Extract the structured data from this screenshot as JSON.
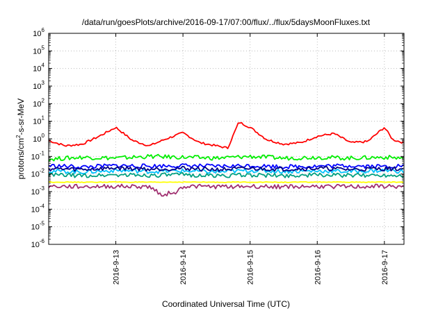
{
  "chart_data": {
    "type": "line",
    "title": "/data/run/goesPlots/archive/2016-09-17/07:00/flux/../flux/5daysMoonFluxes.txt",
    "xlabel": "Coordinated Universal Time (UTC)",
    "ylabel": {
      "pre": "protons/cm",
      "sup": "2",
      "post": "-s-sr-MeV"
    },
    "x_range_days": [
      "2016-09-12 00:00",
      "2016-09-17 07:00"
    ],
    "x_ticks": [
      "2016-9-13",
      "2016-9-14",
      "2016-9-15",
      "2016-9-16",
      "2016-9-17"
    ],
    "y_scale": "log",
    "y_range": [
      1e-06,
      1000000.0
    ],
    "y_ticks": [
      {
        "base": "10",
        "exp": "-6"
      },
      {
        "base": "10",
        "exp": "-5"
      },
      {
        "base": "10",
        "exp": "-4"
      },
      {
        "base": "10",
        "exp": "-3"
      },
      {
        "base": "10",
        "exp": "-2"
      },
      {
        "base": "10",
        "exp": "-1"
      },
      {
        "base": "10",
        "exp": "0"
      },
      {
        "base": "10",
        "exp": "1"
      },
      {
        "base": "10",
        "exp": "2"
      },
      {
        "base": "10",
        "exp": "3"
      },
      {
        "base": "10",
        "exp": "4"
      },
      {
        "base": "10",
        "exp": "5"
      },
      {
        "base": "10",
        "exp": "6"
      }
    ],
    "grid": true,
    "series": [
      {
        "color": "#ff0000",
        "x": [
          "2016-09-12 00:00",
          "2016-09-12 06:00",
          "2016-09-12 12:00",
          "2016-09-12 18:00",
          "2016-09-13 00:00",
          "2016-09-13 06:00",
          "2016-09-13 12:00",
          "2016-09-13 18:00",
          "2016-09-14 00:00",
          "2016-09-14 06:00",
          "2016-09-14 12:00",
          "2016-09-14 16:00",
          "2016-09-14 20:00",
          "2016-09-15 00:00",
          "2016-09-15 06:00",
          "2016-09-15 12:00",
          "2016-09-15 18:00",
          "2016-09-16 00:00",
          "2016-09-16 06:00",
          "2016-09-16 12:00",
          "2016-09-16 18:00",
          "2016-09-17 00:00",
          "2016-09-17 03:00",
          "2016-09-17 07:00"
        ],
        "y": [
          0.8,
          0.4,
          0.5,
          1.4,
          4.5,
          0.8,
          0.4,
          1.0,
          2.2,
          0.6,
          0.4,
          0.3,
          9.0,
          4.5,
          0.9,
          0.5,
          0.6,
          1.4,
          2.0,
          0.6,
          0.7,
          4.5,
          0.9,
          0.6
        ]
      },
      {
        "color": "#00ee00",
        "x": [
          "2016-09-12 00:00",
          "2016-09-12 12:00",
          "2016-09-13 00:00",
          "2016-09-13 12:00",
          "2016-09-14 00:00",
          "2016-09-14 12:00",
          "2016-09-15 00:00",
          "2016-09-15 12:00",
          "2016-09-16 00:00",
          "2016-09-16 12:00",
          "2016-09-17 00:00",
          "2016-09-17 07:00"
        ],
        "y": [
          0.07,
          0.09,
          0.08,
          0.1,
          0.09,
          0.08,
          0.1,
          0.08,
          0.09,
          0.08,
          0.09,
          0.08
        ]
      },
      {
        "color": "#0000ff",
        "x": [
          "2016-09-12 00:00",
          "2016-09-12 12:00",
          "2016-09-13 00:00",
          "2016-09-13 12:00",
          "2016-09-14 00:00",
          "2016-09-14 12:00",
          "2016-09-15 00:00",
          "2016-09-15 12:00",
          "2016-09-16 00:00",
          "2016-09-16 12:00",
          "2016-09-17 00:00",
          "2016-09-17 07:00"
        ],
        "y": [
          0.03,
          0.025,
          0.03,
          0.028,
          0.03,
          0.027,
          0.03,
          0.026,
          0.028,
          0.03,
          0.027,
          0.03
        ]
      },
      {
        "color": "#00c0ff",
        "x": [
          "2016-09-12 00:00",
          "2016-09-12 12:00",
          "2016-09-13 00:00",
          "2016-09-13 12:00",
          "2016-09-14 00:00",
          "2016-09-14 12:00",
          "2016-09-15 00:00",
          "2016-09-15 12:00",
          "2016-09-16 00:00",
          "2016-09-16 12:00",
          "2016-09-17 00:00",
          "2016-09-17 07:00"
        ],
        "y": [
          0.015,
          0.013,
          0.016,
          0.014,
          0.015,
          0.013,
          0.016,
          0.014,
          0.015,
          0.014,
          0.016,
          0.014
        ]
      },
      {
        "color": "#000080",
        "x": [
          "2016-09-12 00:00",
          "2016-09-12 12:00",
          "2016-09-13 00:00",
          "2016-09-13 12:00",
          "2016-09-14 00:00",
          "2016-09-14 12:00",
          "2016-09-15 00:00",
          "2016-09-15 12:00",
          "2016-09-16 00:00",
          "2016-09-16 12:00",
          "2016-09-17 00:00",
          "2016-09-17 07:00"
        ],
        "y": [
          0.02,
          0.018,
          0.022,
          0.019,
          0.021,
          0.018,
          0.02,
          0.019,
          0.021,
          0.018,
          0.02,
          0.019
        ]
      },
      {
        "color": "#00a080",
        "x": [
          "2016-09-12 00:00",
          "2016-09-12 12:00",
          "2016-09-13 00:00",
          "2016-09-13 12:00",
          "2016-09-14 00:00",
          "2016-09-14 12:00",
          "2016-09-15 00:00",
          "2016-09-15 12:00",
          "2016-09-16 00:00",
          "2016-09-16 12:00",
          "2016-09-17 00:00",
          "2016-09-17 07:00"
        ],
        "y": [
          0.009,
          0.008,
          0.009,
          0.0085,
          0.009,
          0.008,
          0.0088,
          0.008,
          0.009,
          0.0082,
          0.0088,
          0.0085
        ]
      },
      {
        "color": "#ffff00",
        "x": [
          "2016-09-12 00:00",
          "2016-09-12 12:00",
          "2016-09-13 00:00",
          "2016-09-13 12:00",
          "2016-09-14 00:00",
          "2016-09-14 12:00",
          "2016-09-15 00:00",
          "2016-09-15 12:00",
          "2016-09-16 00:00",
          "2016-09-16 12:00",
          "2016-09-17 00:00",
          "2016-09-17 07:00"
        ],
        "y": [
          0.0035,
          0.0034,
          0.0035,
          0.0034,
          0.0035,
          0.0034,
          0.0035,
          0.0034,
          0.0035,
          0.0034,
          0.0035,
          0.0034
        ]
      },
      {
        "color": "#a03070",
        "x": [
          "2016-09-12 00:00",
          "2016-09-12 12:00",
          "2016-09-13 00:00",
          "2016-09-13 12:00",
          "2016-09-13 18:00",
          "2016-09-13 19:00",
          "2016-09-13 20:00",
          "2016-09-14 00:00",
          "2016-09-14 12:00",
          "2016-09-15 00:00",
          "2016-09-15 12:00",
          "2016-09-16 00:00",
          "2016-09-16 12:00",
          "2016-09-17 00:00",
          "2016-09-17 07:00"
        ],
        "y": [
          0.002,
          0.0019,
          0.002,
          0.0019,
          0.0005,
          0.0015,
          0.0006,
          0.002,
          0.0019,
          0.002,
          0.0019,
          0.002,
          0.0019,
          0.002,
          0.0019
        ]
      }
    ]
  }
}
